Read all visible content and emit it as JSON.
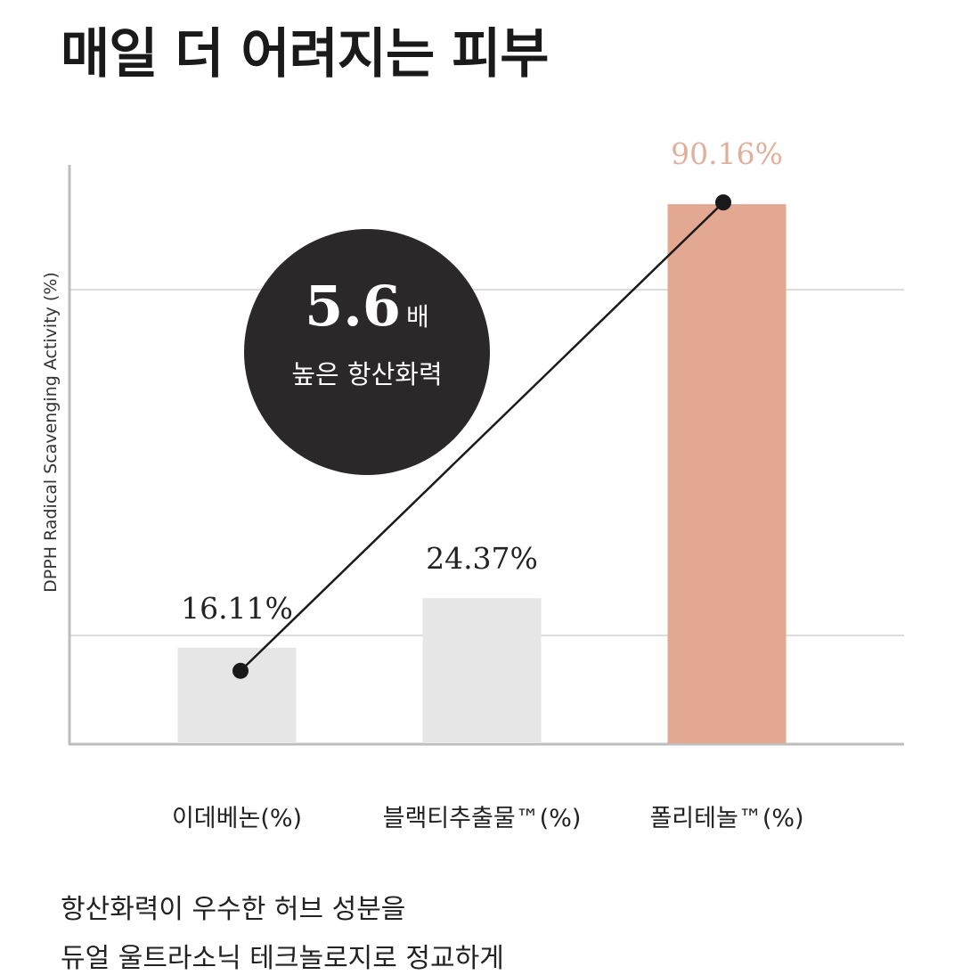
{
  "title": "매일 더 어려지는 피부",
  "badge": {
    "multiplier": "5.6",
    "unit": "배",
    "caption": "높은 항산화력"
  },
  "description": [
    "항산화력이 우수한 허브 성분을",
    "듀얼 울트라소닉 테크놀로지로 정교하게"
  ],
  "chart_data": {
    "type": "bar",
    "ylabel": "DPPH Radical Scavenging Activity (%)",
    "categories": [
      "이데베논(%)",
      "블랙티추출물™(%)",
      "폴리테놀™(%)"
    ],
    "values": [
      16.11,
      24.37,
      90.16
    ],
    "value_labels": [
      "16.11%",
      "24.37%",
      "90.16%"
    ],
    "ylim": [
      0,
      100
    ],
    "grid": true,
    "colors": {
      "default": "#e6e6e6",
      "highlight": "#e3a892",
      "highlight_label": "#e0b09c",
      "line": "#1a1a1a"
    },
    "overlay": "line connecting first and last bar tops"
  }
}
